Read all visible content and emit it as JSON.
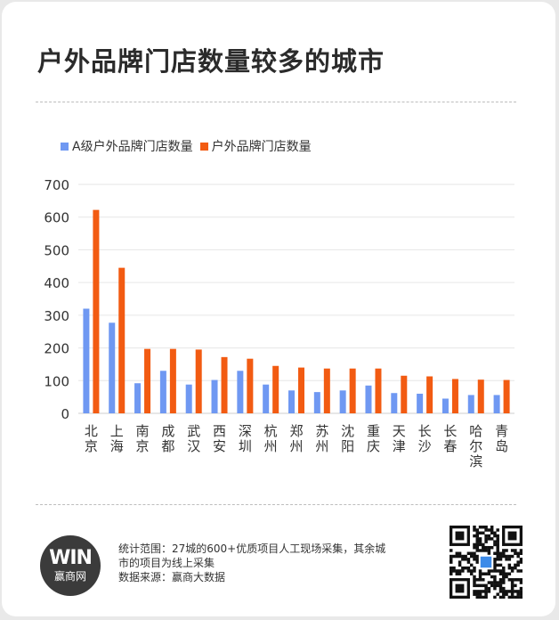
{
  "title": "户外品牌门店数量较多的城市",
  "legend": {
    "series_a": "A级户外品牌门店数量",
    "series_b": "户外品牌门店数量"
  },
  "colors": {
    "series_a": "#6f98f2",
    "series_b": "#f25b12",
    "grid": "#e6e6e6",
    "axis_text": "#333333"
  },
  "chart_data": {
    "type": "bar",
    "categories": [
      "北京",
      "上海",
      "南京",
      "成都",
      "武汉",
      "西安",
      "深圳",
      "杭州",
      "郑州",
      "苏州",
      "沈阳",
      "重庆",
      "天津",
      "长沙",
      "长春",
      "哈尔滨",
      "青岛"
    ],
    "series": [
      {
        "name": "A级户外品牌门店数量",
        "values": [
          320,
          277,
          92,
          130,
          88,
          102,
          130,
          88,
          70,
          65,
          70,
          85,
          62,
          60,
          45,
          56,
          56
        ]
      },
      {
        "name": "户外品牌门店数量",
        "values": [
          622,
          445,
          197,
          197,
          195,
          172,
          167,
          145,
          140,
          137,
          137,
          137,
          115,
          113,
          105,
          103,
          102
        ]
      }
    ],
    "ylim": [
      0,
      700
    ],
    "yticks": [
      0,
      100,
      200,
      300,
      400,
      500,
      600,
      700
    ],
    "grid": true,
    "legend_position": "top-left"
  },
  "footer": {
    "scope_line1": "统计范围：27城的600+优质项目人工现场采集，其余城",
    "scope_line2": "市的项目为线上采集",
    "source": "数据来源：赢商大数据"
  },
  "logo": {
    "mark": "WIN",
    "name": "赢商网"
  },
  "qr_icon": "qr-code-icon"
}
